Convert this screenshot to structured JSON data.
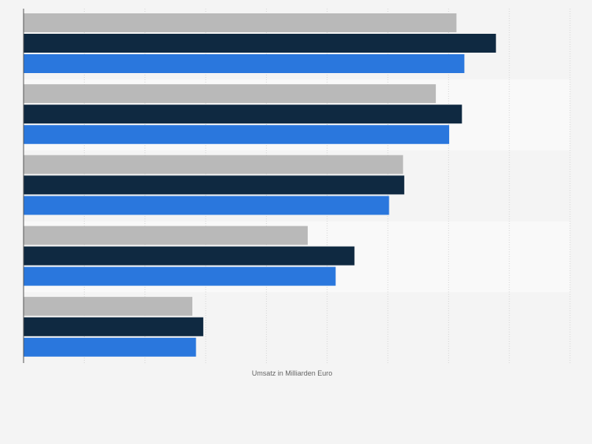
{
  "chart_data": {
    "type": "bar",
    "orientation": "horizontal",
    "title": "",
    "xlabel": "Umsatz in Milliarden Euro",
    "ylabel": "",
    "categories": [
      "",
      "",
      "",
      "",
      ""
    ],
    "series": [
      {
        "color": "#b9b9b9",
        "values": [
          71.3,
          67.9,
          62.5,
          46.8,
          27.8
        ]
      },
      {
        "color": "#0f2941",
        "values": [
          77.8,
          72.2,
          62.7,
          54.5,
          29.6
        ]
      },
      {
        "color": "#2a77dd",
        "values": [
          72.6,
          70.1,
          60.2,
          51.4,
          28.4
        ]
      }
    ],
    "xlim": [
      0,
      90
    ],
    "x_gridline_step": 10,
    "grid": true,
    "legend": "none",
    "band_colors": [
      "#f4f4f4",
      "#f9f9f9"
    ]
  }
}
